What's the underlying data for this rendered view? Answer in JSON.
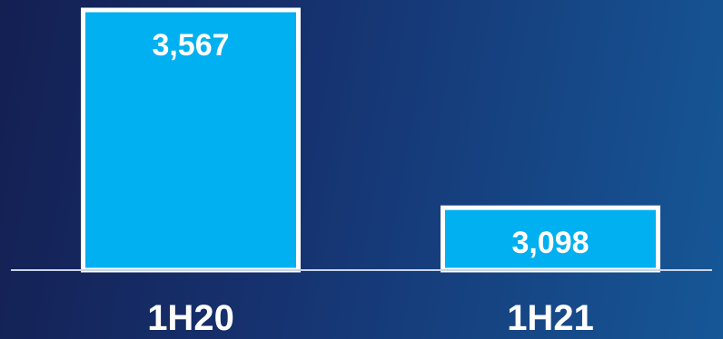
{
  "chart_data": {
    "type": "bar",
    "categories": [
      "1H20",
      "1H21"
    ],
    "values": [
      3567,
      3098
    ],
    "value_labels": [
      "3,567",
      "3,098"
    ],
    "title": "",
    "xlabel": "",
    "ylabel": "",
    "ylim": [
      2950,
      3567
    ],
    "grid": false,
    "legend": "none",
    "colors": {
      "bar_fill": "#00b0f0",
      "bar_stroke": "#ffffff",
      "text": "#ffffff",
      "background_start": "#141f52",
      "background_end": "#165797"
    }
  }
}
